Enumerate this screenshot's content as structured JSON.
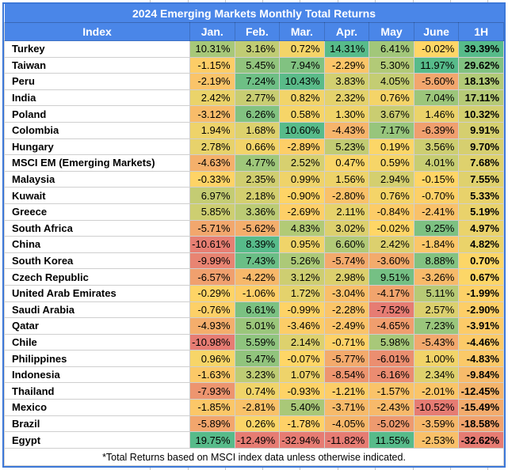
{
  "table": {
    "title": "2024 Emerging Markets Monthly Total Returns",
    "header": [
      "Index",
      "Jan.",
      "Feb.",
      "Mar.",
      "Apr.",
      "May",
      "June",
      "1H"
    ],
    "footnote": "*Total Returns based on MSCI index data unless otherwise indicated."
  },
  "colors": {
    "header_bg": "#4a86e8",
    "header_text": "#ffffff",
    "outer_border": "#3c78d8",
    "gridline": "#cfcfcf"
  },
  "chart_data": {
    "type": "heatmap",
    "title": "2024 Emerging Markets Monthly Total Returns",
    "columns": [
      "Jan.",
      "Feb.",
      "Mar.",
      "Apr.",
      "May",
      "June",
      "1H"
    ],
    "unit": "%",
    "color_scale": {
      "min_color": "#e67c73",
      "mid_color": "#ffd666",
      "max_color": "#57bb8a",
      "midpoint": 0,
      "scope": "per-column"
    },
    "rows": [
      {
        "name": "Turkey",
        "values": [
          10.31,
          3.16,
          0.72,
          14.31,
          6.41,
          -0.02,
          39.39
        ]
      },
      {
        "name": "Taiwan",
        "values": [
          -1.15,
          5.45,
          7.94,
          -2.29,
          5.3,
          11.97,
          29.62
        ]
      },
      {
        "name": "Peru",
        "values": [
          -2.19,
          7.24,
          10.43,
          3.83,
          4.05,
          -5.6,
          18.13
        ]
      },
      {
        "name": "India",
        "values": [
          2.42,
          2.77,
          0.82,
          2.32,
          0.76,
          7.04,
          17.11
        ]
      },
      {
        "name": "Poland",
        "values": [
          -3.12,
          6.26,
          0.58,
          1.3,
          3.67,
          1.46,
          10.32
        ]
      },
      {
        "name": "Colombia",
        "values": [
          1.94,
          1.68,
          10.6,
          -4.43,
          7.17,
          -6.39,
          9.91
        ]
      },
      {
        "name": "Hungary",
        "values": [
          2.78,
          0.66,
          -2.89,
          5.23,
          0.19,
          3.56,
          9.7
        ]
      },
      {
        "name": "MSCI EM (Emerging Markets)",
        "values": [
          -4.63,
          4.77,
          2.52,
          0.47,
          0.59,
          4.01,
          7.68
        ]
      },
      {
        "name": "Malaysia",
        "values": [
          -0.33,
          2.35,
          0.99,
          1.56,
          2.94,
          -0.15,
          7.55
        ]
      },
      {
        "name": "Kuwait",
        "values": [
          6.97,
          2.18,
          -0.9,
          -2.8,
          0.76,
          -0.7,
          5.33
        ]
      },
      {
        "name": "Greece",
        "values": [
          5.85,
          3.36,
          -2.69,
          2.11,
          -0.84,
          -2.41,
          5.19
        ]
      },
      {
        "name": "South Africa",
        "values": [
          -5.71,
          -5.62,
          4.83,
          3.02,
          -0.02,
          9.25,
          4.97
        ]
      },
      {
        "name": "China",
        "values": [
          -10.61,
          8.39,
          0.95,
          6.6,
          2.42,
          -1.84,
          4.82
        ]
      },
      {
        "name": "South Korea",
        "values": [
          -9.99,
          7.43,
          5.26,
          -5.74,
          -3.6,
          8.88,
          0.7
        ]
      },
      {
        "name": "Czech Republic",
        "values": [
          -6.57,
          -4.22,
          3.12,
          2.98,
          9.51,
          -3.26,
          0.67
        ]
      },
      {
        "name": "United Arab Emirates",
        "values": [
          -0.29,
          -1.06,
          1.72,
          -3.04,
          -4.17,
          5.11,
          -1.99
        ]
      },
      {
        "name": "Saudi Arabia",
        "values": [
          -0.76,
          6.61,
          -0.99,
          -2.28,
          -7.52,
          2.57,
          -2.9
        ]
      },
      {
        "name": "Qatar",
        "values": [
          -4.93,
          5.01,
          -3.46,
          -2.49,
          -4.65,
          7.23,
          -3.91
        ]
      },
      {
        "name": "Chile",
        "values": [
          -10.98,
          5.59,
          2.14,
          -0.71,
          5.98,
          -5.43,
          -4.46
        ]
      },
      {
        "name": "Philippines",
        "values": [
          0.96,
          5.47,
          -0.07,
          -5.77,
          -6.01,
          1.0,
          -4.83
        ]
      },
      {
        "name": "Indonesia",
        "values": [
          -1.63,
          3.23,
          1.07,
          -8.54,
          -6.16,
          2.34,
          -9.84
        ]
      },
      {
        "name": "Thailand",
        "values": [
          -7.93,
          0.74,
          -0.93,
          -1.21,
          -1.57,
          -2.01,
          -12.45
        ]
      },
      {
        "name": "Mexico",
        "values": [
          -1.85,
          -2.81,
          5.4,
          -3.71,
          -2.43,
          -10.52,
          -15.49
        ]
      },
      {
        "name": "Brazil",
        "values": [
          -5.89,
          0.26,
          -1.78,
          -4.05,
          -5.02,
          -3.59,
          -18.58
        ]
      },
      {
        "name": "Egypt",
        "values": [
          19.75,
          -12.49,
          -32.94,
          -11.82,
          11.55,
          -2.53,
          -32.62
        ]
      }
    ]
  }
}
